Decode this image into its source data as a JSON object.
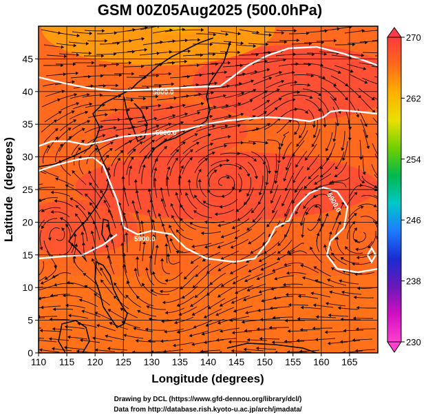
{
  "title": "GSM 00Z05Aug2025 (500.0hPa)",
  "xlabel": "Longitude (degrees)",
  "ylabel": "Latitude  (degrees)",
  "x_ticks": [
    "110",
    "115",
    "120",
    "125",
    "130",
    "135",
    "140",
    "145",
    "150",
    "155",
    "160",
    "165"
  ],
  "y_ticks": [
    "0",
    "5",
    "10",
    "15",
    "20",
    "25",
    "30",
    "35",
    "40",
    "45"
  ],
  "colorbar": {
    "ticks": [
      "270",
      "262",
      "254",
      "246",
      "238",
      "230"
    ],
    "colors": [
      "#ff3a3a",
      "#ff6a1a",
      "#ffb000",
      "#e8e000",
      "#6fd000",
      "#00b850",
      "#00c8c8",
      "#1e7bff",
      "#1a2cd0",
      "#6a18b8",
      "#d010c0",
      "#ff40d0"
    ]
  },
  "contour_labels": [
    "5800.0",
    "5900.0",
    "5900.0",
    "5900.0"
  ],
  "credits": {
    "line1": "Drawing by DCL (https://www.gfd-dennou.org/library/dcl/)",
    "line2": "Data from http://database.rish.kyoto-u.ac.jp/arch/jmadata/"
  },
  "chart_data": {
    "type": "heatmap",
    "title": "GSM 00Z05Aug2025 (500.0hPa)",
    "xlabel": "Longitude (degrees)",
    "ylabel": "Latitude  (degrees)",
    "xlim": [
      110,
      170
    ],
    "ylim": [
      0,
      50
    ],
    "colorbar_range": [
      230,
      270
    ],
    "colorbar_unit": "",
    "contour_values": [
      "5800.0",
      "5900.0"
    ],
    "overlays": [
      "streamlines",
      "coastlines",
      "geopotential height contours"
    ]
  }
}
